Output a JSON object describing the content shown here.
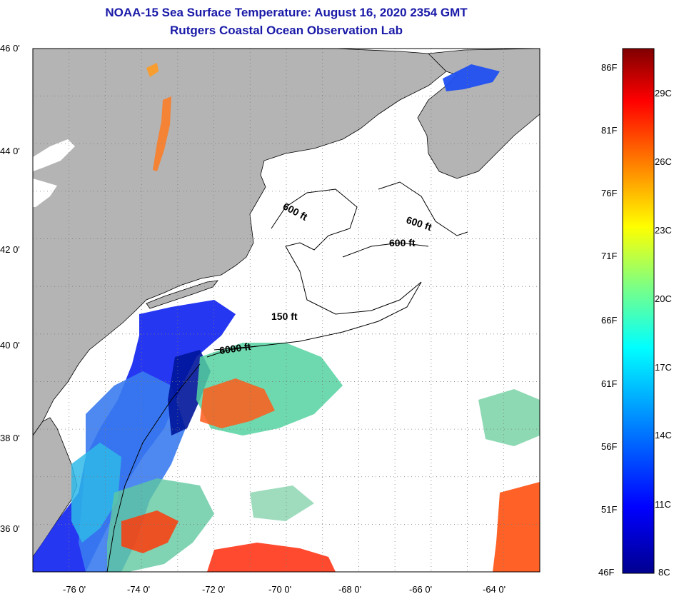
{
  "title": {
    "line1": "NOAA-15 Sea Surface Temperature:  August 16, 2020 2354 GMT",
    "line2": "Rutgers Coastal Ocean Observation Lab"
  },
  "map": {
    "lat_labels": [
      "46 0'",
      "44 0'",
      "42 0'",
      "40 0'",
      "38 0'",
      "36 0'"
    ],
    "lon_labels": [
      "-76 0'",
      "-74 0'",
      "-72 0'",
      "-70 0'",
      "-68 0'",
      "-66 0'",
      "-64 0'"
    ],
    "lat_range": [
      35,
      46
    ],
    "lon_range": [
      -77,
      -63
    ],
    "contour_labels": [
      "600 ft",
      "600 ft",
      "600 ft",
      "150 ft",
      "6000 ft"
    ],
    "colors": {
      "land": "#b4b4b4",
      "water_nodata": "#ffffff",
      "grid": "#7a7a7a"
    }
  },
  "colorbar": {
    "fahrenheit": [
      "86F",
      "81F",
      "76F",
      "71F",
      "66F",
      "61F",
      "56F",
      "51F",
      "46F"
    ],
    "celsius": [
      "29C",
      "26C",
      "23C",
      "20C",
      "17C",
      "14C",
      "11C",
      "8C"
    ],
    "range_c": [
      8,
      31
    ],
    "colors": [
      "#00008f",
      "#0000ff",
      "#0080ff",
      "#00ffff",
      "#80ff80",
      "#ffff00",
      "#ff8000",
      "#ff0000",
      "#800000"
    ]
  }
}
